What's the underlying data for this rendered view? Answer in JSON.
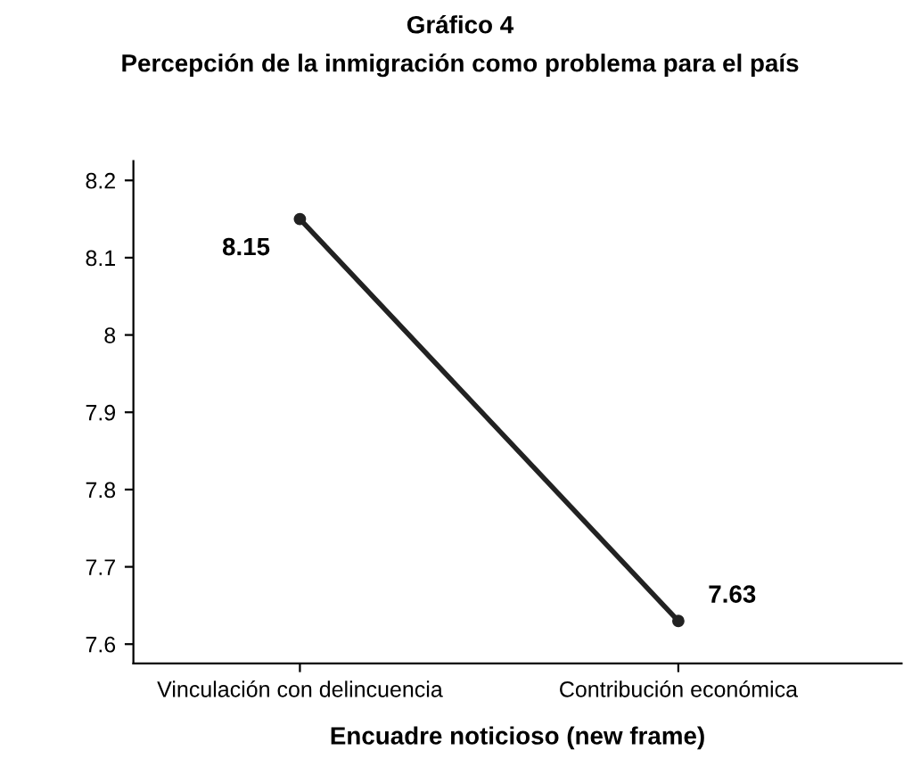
{
  "chart_data": {
    "type": "line",
    "title": "Gráfico 4",
    "subtitle": "Percepción de la inmigración como problema para el país",
    "xlabel": "Encuadre noticioso (new frame)",
    "categories": [
      "Vinculación con delincuencia",
      "Contribución económica"
    ],
    "series": [
      {
        "color": "#222222",
        "values": [
          8.15,
          7.63
        ]
      }
    ],
    "ylim": [
      7.575,
      8.225
    ],
    "yticks": [
      7.6,
      7.7,
      7.8,
      7.9,
      8,
      8.1,
      8.2
    ],
    "data_labels": true,
    "marker": "circle",
    "line_style": "solid",
    "grid": false,
    "legend": false
  }
}
